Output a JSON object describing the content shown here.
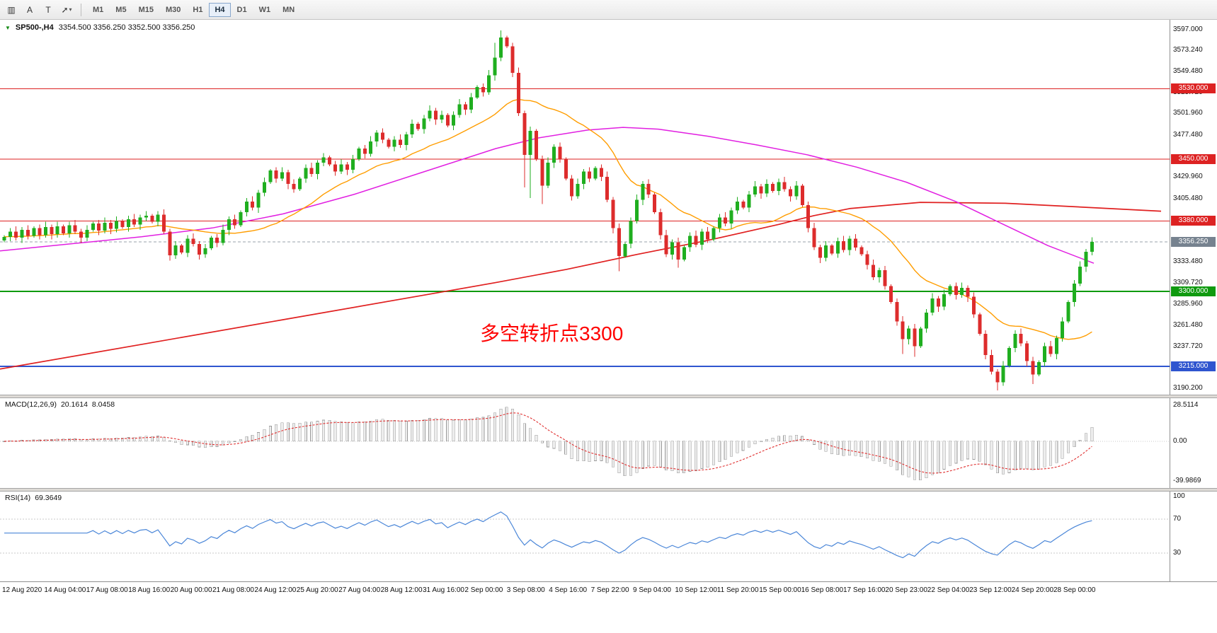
{
  "colors": {
    "up": "#1fae1f",
    "down": "#dd2c2c",
    "ma_fast": "#ff9d00",
    "ma_mid": "#e11fe1",
    "ma_slow": "#e02020",
    "macd_hist": "#ededed",
    "macd_hist_border": "#9b9b9b",
    "macd_signal": "#e03030",
    "rsi_line": "#4a86d8",
    "grid_dotted": "#c8c8c8",
    "price_line": "#98a2ab",
    "price_badge": "#76828f"
  },
  "toolbar": {
    "tools": [
      {
        "name": "chart-bars",
        "glyph": "▥"
      },
      {
        "name": "cursor",
        "glyph": "A"
      },
      {
        "name": "text",
        "glyph": "T"
      },
      {
        "name": "trendline",
        "glyph": "➚"
      }
    ],
    "timeframes": [
      {
        "label": "M1",
        "active": false
      },
      {
        "label": "M5",
        "active": false
      },
      {
        "label": "M15",
        "active": false
      },
      {
        "label": "M30",
        "active": false
      },
      {
        "label": "H1",
        "active": false
      },
      {
        "label": "H4",
        "active": true
      },
      {
        "label": "D1",
        "active": false
      },
      {
        "label": "W1",
        "active": false
      },
      {
        "label": "MN",
        "active": false
      }
    ]
  },
  "header": {
    "symbol": "SP500-,H4",
    "ohlc": "3354.500 3356.250 3352.500 3356.250"
  },
  "annotation": {
    "text": "多空转折点3300",
    "color": "#ff0000"
  },
  "macd": {
    "name": "MACD(12,26,9)",
    "value_main": "20.1614",
    "value_signal": "8.0458",
    "axis": {
      "top": "28.5114",
      "zero": "0.00",
      "bottom": "-39.9869"
    },
    "params": {
      "fast": 12,
      "slow": 26,
      "signal": 9
    }
  },
  "rsi": {
    "name": "RSI(14)",
    "value": "69.3649",
    "axis": {
      "top": "100",
      "upper": "70",
      "lower": "30"
    },
    "period": 14,
    "levels": [
      70,
      30
    ]
  },
  "chart_data": {
    "type": "candlestick",
    "symbol": "SP500-",
    "timeframe": "H4",
    "current_price": {
      "price": 3356.25,
      "label": "3356.250"
    },
    "levels": [
      {
        "price": 3530.0,
        "label": "3530.000",
        "color": "#dd2222",
        "line_width": 1
      },
      {
        "price": 3450.0,
        "label": "3450.000",
        "color": "#dd2222",
        "line_width": 1
      },
      {
        "price": 3380.0,
        "label": "3380.000",
        "color": "#dd2222",
        "line_width": 1
      },
      {
        "price": 3300.0,
        "label": "3300.000",
        "color": "#0f9a0f",
        "line_width": 2
      },
      {
        "price": 3215.0,
        "label": "3215.000",
        "color": "#2f55cf",
        "line_width": 2
      }
    ],
    "price_axis_ticks": [
      {
        "label": "3597.000",
        "price": 3597.0
      },
      {
        "label": "3573.240",
        "price": 3573.24
      },
      {
        "label": "3549.480",
        "price": 3549.48
      },
      {
        "label": "3525.720",
        "price": 3525.72
      },
      {
        "label": "3501.960",
        "price": 3501.96
      },
      {
        "label": "3477.480",
        "price": 3477.48
      },
      {
        "label": "3429.960",
        "price": 3429.96
      },
      {
        "label": "3405.480",
        "price": 3405.48
      },
      {
        "label": "3333.480",
        "price": 3333.48
      },
      {
        "label": "3309.720",
        "price": 3309.72
      },
      {
        "label": "3285.960",
        "price": 3285.96
      },
      {
        "label": "3261.480",
        "price": 3261.48
      },
      {
        "label": "3237.720",
        "price": 3237.72
      },
      {
        "label": "3190.200",
        "price": 3190.2
      }
    ],
    "time_labels": [
      "12 Aug 2020",
      "14 Aug 04:00",
      "17 Aug 08:00",
      "18 Aug 16:00",
      "20 Aug 00:00",
      "21 Aug 08:00",
      "24 Aug 12:00",
      "25 Aug 20:00",
      "27 Aug 04:00",
      "28 Aug 12:00",
      "31 Aug 16:00",
      "2 Sep 00:00",
      "3 Sep 08:00",
      "4 Sep 16:00",
      "7 Sep 22:00",
      "9 Sep 04:00",
      "10 Sep 12:00",
      "11 Sep 20:00",
      "15 Sep 00:00",
      "16 Sep 08:00",
      "17 Sep 16:00",
      "20 Sep 23:00",
      "22 Sep 04:00",
      "23 Sep 12:00",
      "24 Sep 20:00",
      "28 Sep 00:00"
    ],
    "closes": [
      3362,
      3368,
      3361,
      3370,
      3363,
      3372,
      3364,
      3373,
      3365,
      3374,
      3366,
      3375,
      3368,
      3361,
      3370,
      3377,
      3369,
      3378,
      3371,
      3380,
      3373,
      3382,
      3376,
      3384,
      3386,
      3379,
      3387,
      3368,
      3341,
      3352,
      3344,
      3360,
      3354,
      3342,
      3349,
      3361,
      3355,
      3370,
      3382,
      3375,
      3390,
      3402,
      3395,
      3412,
      3424,
      3437,
      3428,
      3435,
      3422,
      3416,
      3428,
      3440,
      3433,
      3446,
      3452,
      3444,
      3436,
      3444,
      3438,
      3450,
      3462,
      3456,
      3470,
      3480,
      3472,
      3464,
      3472,
      3466,
      3478,
      3490,
      3484,
      3496,
      3505,
      3495,
      3500,
      3488,
      3500,
      3512,
      3506,
      3520,
      3532,
      3526,
      3545,
      3565,
      3588,
      3578,
      3548,
      3502,
      3455,
      3482,
      3450,
      3420,
      3446,
      3464,
      3450,
      3428,
      3408,
      3422,
      3436,
      3428,
      3440,
      3430,
      3404,
      3372,
      3340,
      3354,
      3380,
      3404,
      3422,
      3410,
      3390,
      3364,
      3342,
      3356,
      3336,
      3350,
      3363,
      3353,
      3368,
      3359,
      3372,
      3384,
      3377,
      3392,
      3402,
      3395,
      3410,
      3419,
      3411,
      3422,
      3414,
      3424,
      3416,
      3408,
      3420,
      3398,
      3372,
      3350,
      3338,
      3352,
      3343,
      3357,
      3347,
      3360,
      3350,
      3342,
      3330,
      3316,
      3324,
      3306,
      3288,
      3266,
      3246,
      3258,
      3238,
      3258,
      3276,
      3292,
      3283,
      3297,
      3306,
      3296,
      3304,
      3294,
      3274,
      3252,
      3228,
      3209,
      3197,
      3216,
      3236,
      3252,
      3241,
      3221,
      3206,
      3220,
      3238,
      3229,
      3247,
      3266,
      3288,
      3309,
      3328,
      3345,
      3356.25
    ],
    "high_overrides": {
      "83": 3582,
      "84": 3596
    },
    "low_overrides": {
      "88": 3418,
      "89": 3406,
      "91": 3399,
      "104": 3323,
      "114": 3327,
      "152": 3229,
      "154": 3226,
      "168": 3188,
      "174": 3195
    },
    "moving_averages": {
      "fast_period": 20,
      "mid_path": [
        [
          0,
          3346
        ],
        [
          100,
          3354
        ],
        [
          200,
          3362
        ],
        [
          300,
          3372
        ],
        [
          400,
          3388
        ],
        [
          500,
          3410
        ],
        [
          600,
          3436
        ],
        [
          700,
          3462
        ],
        [
          760,
          3474
        ],
        [
          830,
          3483
        ],
        [
          880,
          3486
        ],
        [
          930,
          3484
        ],
        [
          1000,
          3476
        ],
        [
          1070,
          3466
        ],
        [
          1140,
          3455
        ],
        [
          1210,
          3441
        ],
        [
          1280,
          3424
        ],
        [
          1350,
          3402
        ],
        [
          1420,
          3375
        ],
        [
          1480,
          3352
        ],
        [
          1545,
          3332
        ]
      ],
      "slow_path": [
        [
          0,
          3212
        ],
        [
          200,
          3240
        ],
        [
          400,
          3268
        ],
        [
          600,
          3296
        ],
        [
          700,
          3310
        ],
        [
          800,
          3325
        ],
        [
          900,
          3342
        ],
        [
          1000,
          3358
        ],
        [
          1100,
          3376
        ],
        [
          1150,
          3386
        ],
        [
          1200,
          3394
        ],
        [
          1300,
          3401
        ],
        [
          1420,
          3400
        ],
        [
          1520,
          3396
        ],
        [
          1640,
          3391
        ]
      ]
    }
  }
}
